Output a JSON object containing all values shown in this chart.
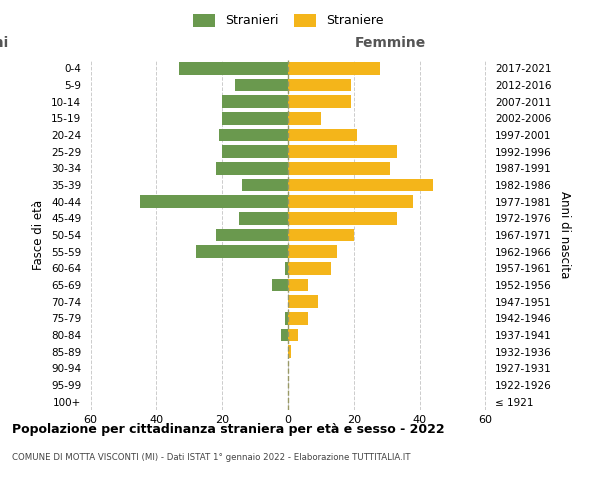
{
  "age_groups": [
    "100+",
    "95-99",
    "90-94",
    "85-89",
    "80-84",
    "75-79",
    "70-74",
    "65-69",
    "60-64",
    "55-59",
    "50-54",
    "45-49",
    "40-44",
    "35-39",
    "30-34",
    "25-29",
    "20-24",
    "15-19",
    "10-14",
    "5-9",
    "0-4"
  ],
  "birth_years": [
    "≤ 1921",
    "1922-1926",
    "1927-1931",
    "1932-1936",
    "1937-1941",
    "1942-1946",
    "1947-1951",
    "1952-1956",
    "1957-1961",
    "1962-1966",
    "1967-1971",
    "1972-1976",
    "1977-1981",
    "1982-1986",
    "1987-1991",
    "1992-1996",
    "1997-2001",
    "2002-2006",
    "2007-2011",
    "2012-2016",
    "2017-2021"
  ],
  "males": [
    0,
    0,
    0,
    0,
    2,
    1,
    0,
    5,
    1,
    28,
    22,
    15,
    45,
    14,
    22,
    20,
    21,
    20,
    20,
    16,
    33
  ],
  "females": [
    0,
    0,
    0,
    1,
    3,
    6,
    9,
    6,
    13,
    15,
    20,
    33,
    38,
    44,
    31,
    33,
    21,
    10,
    19,
    19,
    28
  ],
  "male_color": "#6a994e",
  "female_color": "#f4b51a",
  "background_color": "#ffffff",
  "grid_color": "#cccccc",
  "title": "Popolazione per cittadinanza straniera per età e sesso - 2022",
  "subtitle": "COMUNE DI MOTTA VISCONTI (MI) - Dati ISTAT 1° gennaio 2022 - Elaborazione TUTTITALIA.IT",
  "xlabel_right": "Femmine",
  "ylabel_left": "Fasce di età",
  "ylabel_right": "Anni di nascita",
  "legend_males": "Stranieri",
  "legend_females": "Straniere",
  "xlim": 62,
  "bar_height": 0.75
}
